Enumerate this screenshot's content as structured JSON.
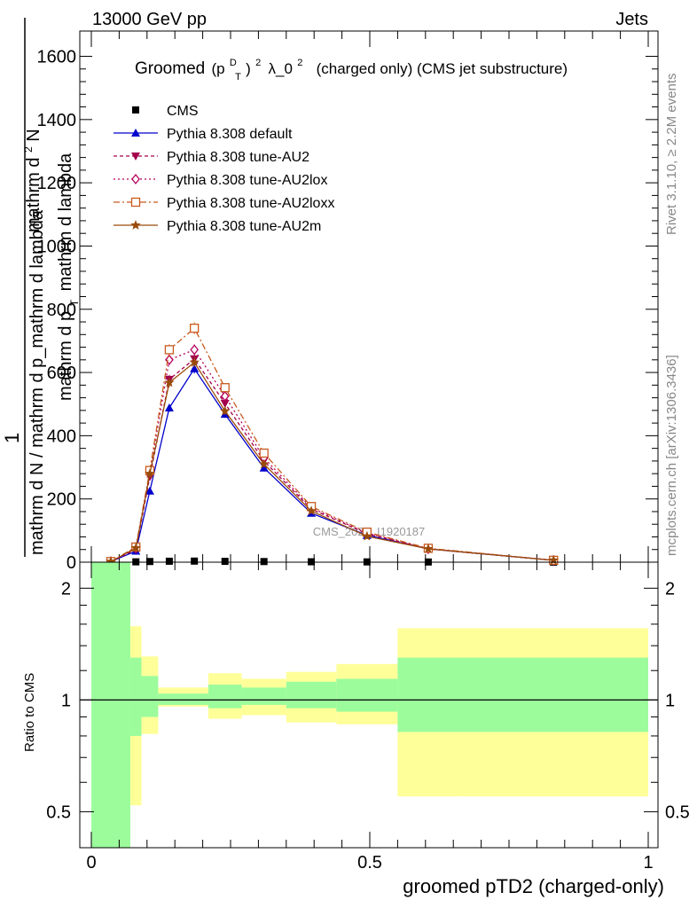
{
  "header": {
    "left": "13000 GeV pp",
    "right": "Jets"
  },
  "side_labels": {
    "rivet": "Rivet 3.1.10, ≥ 2.2M events",
    "mcplots": "mcplots.cern.ch [arXiv:1306.3436]"
  },
  "chart_data": [
    {
      "type": "line",
      "title_main": "Groomed",
      "title_pt": "(p",
      "title_sup_d": "D",
      "title_sub_t": "T",
      "title_paren_close": ")",
      "title_sup_2": "2",
      "title_lambda": "λ_0",
      "title_sup_2b": "2",
      "title_rest": "(charged only) (CMS jet substructure)",
      "ylabel_parts": {
        "numerator_left": "1",
        "denominator_left": "mathrm d N / mathrm d p_mathrm d lambda",
        "numerator_right": "mathrm d",
        "superscript_N": "2",
        "N_label": "N",
        "denominator_right": "mathrm d p",
        "subscript_T": "T",
        "denominator_right_rest": "mathrm d lambda"
      },
      "watermark": "CMS_2021_I1920187",
      "xlim": [
        0,
        1
      ],
      "ylim": [
        0,
        1680
      ],
      "y_ticks": [
        0,
        200,
        400,
        600,
        800,
        1000,
        1200,
        1400,
        1600
      ],
      "y_tick_labels": [
        "0",
        "200",
        "400",
        "600",
        "800",
        "1000",
        "1200",
        "1400",
        "1600"
      ],
      "legend_position": "top-left",
      "bin_edges": [
        0,
        0.07,
        0.09,
        0.12,
        0.16,
        0.21,
        0.27,
        0.35,
        0.44,
        0.55,
        0.66,
        1.0
      ],
      "x": [
        0.035,
        0.08,
        0.105,
        0.14,
        0.185,
        0.24,
        0.31,
        0.395,
        0.495,
        0.605,
        0.83
      ],
      "series": [
        {
          "name": "CMS",
          "color": "#000000",
          "marker": "square-filled",
          "dash": "none",
          "values": [
            0.3,
            1.1,
            2.1,
            3.0,
            3.4,
            2.6,
            2.0,
            1.3,
            0.9,
            0.6,
            0.15
          ]
        },
        {
          "name": "Pythia 8.308 default",
          "color": "#0000cc",
          "marker": "triangle-up-filled",
          "dash": "solid",
          "values": [
            2,
            35,
            225,
            488,
            612,
            468,
            298,
            155,
            85,
            42,
            6
          ]
        },
        {
          "name": "Pythia 8.308 tune-AU2",
          "color": "#a3004c",
          "marker": "triangle-down-filled",
          "dash": "4,3",
          "values": [
            2,
            40,
            270,
            578,
            643,
            502,
            320,
            168,
            90,
            42,
            6
          ]
        },
        {
          "name": "Pythia 8.308 tune-AU2lox",
          "color": "#b4005a",
          "marker": "diamond-open",
          "dash": "2,3",
          "values": [
            2,
            44,
            282,
            640,
            672,
            525,
            330,
            172,
            92,
            42,
            6
          ]
        },
        {
          "name": "Pythia 8.308 tune-AU2loxx",
          "color": "#c85a1e",
          "marker": "square-open",
          "dash": "7,3,2,3",
          "values": [
            2,
            48,
            290,
            672,
            740,
            552,
            345,
            176,
            95,
            44,
            6
          ]
        },
        {
          "name": "Pythia 8.308 tune-AU2m",
          "color": "#9a4b0a",
          "marker": "star",
          "dash": "solid",
          "values": [
            2,
            45,
            280,
            568,
            632,
            478,
            310,
            162,
            82,
            42,
            6
          ]
        }
      ]
    },
    {
      "type": "area",
      "ylabel": "Ratio to CMS",
      "xlabel": "groomed pTD2 (charged-only)",
      "xlim": [
        0,
        1
      ],
      "ylim": [
        0.4,
        2.35
      ],
      "log_y": true,
      "y_tick_labels_major": [
        "0.5",
        "1",
        "2"
      ],
      "x_tick_labels": [
        "0",
        "0.5",
        "1"
      ],
      "bin_edges": [
        0,
        0.07,
        0.09,
        0.12,
        0.16,
        0.21,
        0.27,
        0.35,
        0.44,
        0.55,
        0.66,
        1.0
      ],
      "inner_band_color": "#9cfc9c",
      "outer_band_color": "#ffff99",
      "inner_band": [
        [
          0.1,
          3.5
        ],
        [
          0.8,
          1.3
        ],
        [
          0.9,
          1.16
        ],
        [
          0.97,
          1.04
        ],
        [
          0.97,
          1.04
        ],
        [
          0.95,
          1.1
        ],
        [
          0.97,
          1.08
        ],
        [
          0.95,
          1.12
        ],
        [
          0.93,
          1.14
        ],
        [
          0.82,
          1.3
        ],
        [
          0.82,
          1.3
        ]
      ],
      "outer_band": [
        [
          0.1,
          3.5
        ],
        [
          0.52,
          1.58
        ],
        [
          0.81,
          1.31
        ],
        [
          0.96,
          1.08
        ],
        [
          0.96,
          1.08
        ],
        [
          0.89,
          1.18
        ],
        [
          0.91,
          1.14
        ],
        [
          0.87,
          1.19
        ],
        [
          0.86,
          1.25
        ],
        [
          0.55,
          1.56
        ],
        [
          0.55,
          1.56
        ]
      ],
      "reference_line": 1.0
    }
  ]
}
